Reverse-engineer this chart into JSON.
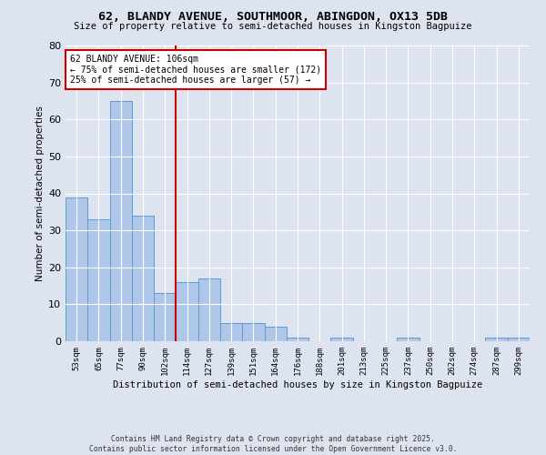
{
  "title": "62, BLANDY AVENUE, SOUTHMOOR, ABINGDON, OX13 5DB",
  "subtitle": "Size of property relative to semi-detached houses in Kingston Bagpuize",
  "xlabel": "Distribution of semi-detached houses by size in Kingston Bagpuize",
  "ylabel": "Number of semi-detached properties",
  "bins": [
    "53sqm",
    "65sqm",
    "77sqm",
    "90sqm",
    "102sqm",
    "114sqm",
    "127sqm",
    "139sqm",
    "151sqm",
    "164sqm",
    "176sqm",
    "188sqm",
    "201sqm",
    "213sqm",
    "225sqm",
    "237sqm",
    "250sqm",
    "262sqm",
    "274sqm",
    "287sqm",
    "299sqm"
  ],
  "values": [
    39,
    33,
    65,
    34,
    13,
    16,
    17,
    5,
    5,
    4,
    1,
    0,
    1,
    0,
    0,
    1,
    0,
    0,
    0,
    1,
    1
  ],
  "bar_color": "#aec6e8",
  "bar_edge_color": "#5b9bd5",
  "vline_x": 4.5,
  "vline_color": "#cc0000",
  "ylim": [
    0,
    80
  ],
  "yticks": [
    0,
    10,
    20,
    30,
    40,
    50,
    60,
    70,
    80
  ],
  "annotation_title": "62 BLANDY AVENUE: 106sqm",
  "annotation_line1": "← 75% of semi-detached houses are smaller (172)",
  "annotation_line2": "25% of semi-detached houses are larger (57) →",
  "annotation_box_color": "#cc0000",
  "footer1": "Contains HM Land Registry data © Crown copyright and database right 2025.",
  "footer2": "Contains public sector information licensed under the Open Government Licence v3.0.",
  "bg_color": "#dde4f0",
  "plot_bg_color": "#dde4f0"
}
